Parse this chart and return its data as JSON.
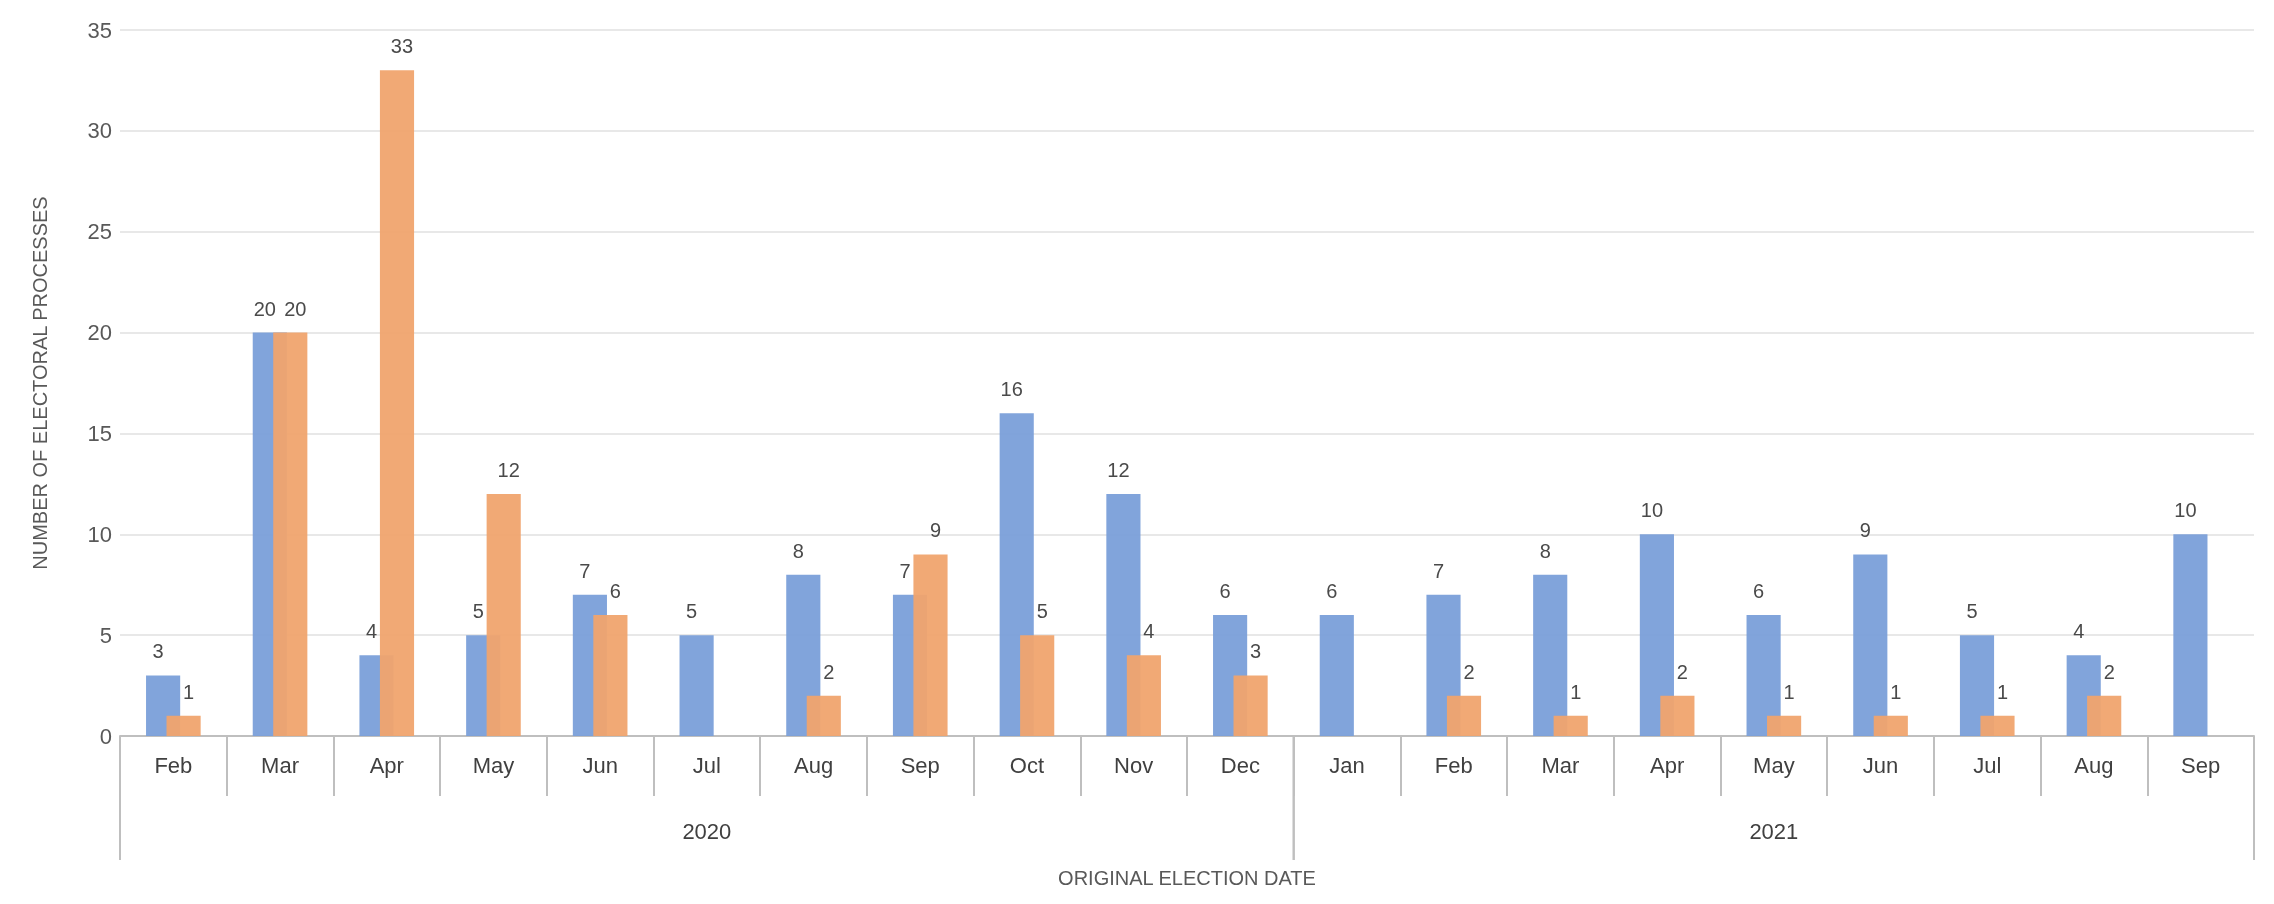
{
  "chart_data": {
    "type": "bar",
    "xlabel": "ORIGINAL ELECTION DATE",
    "ylabel": "NUMBER OF ELECTORAL PROCESSES",
    "categories": [
      "Feb",
      "Mar",
      "Apr",
      "May",
      "Jun",
      "Jul",
      "Aug",
      "Sep",
      "Oct",
      "Nov",
      "Dec",
      "Jan",
      "Feb",
      "Mar",
      "Apr",
      "May",
      "Jun",
      "Jul",
      "Aug",
      "Sep"
    ],
    "annotations": [
      "2020",
      "2021"
    ],
    "series": [
      {
        "color": "#7a9fd9",
        "values": [
          3,
          20,
          4,
          5,
          7,
          5,
          8,
          7,
          16,
          12,
          6,
          6,
          7,
          8,
          10,
          6,
          9,
          5,
          4,
          10
        ]
      },
      {
        "color": "#f0a46e",
        "values": [
          1,
          20,
          33,
          12,
          6,
          null,
          2,
          9,
          5,
          4,
          3,
          null,
          2,
          1,
          2,
          1,
          1,
          1,
          2,
          null
        ]
      }
    ],
    "ylim": [
      0,
      35
    ],
    "yticks": [
      0,
      5,
      10,
      15,
      20,
      25,
      30,
      35
    ],
    "grid": "y",
    "data_labels": true
  }
}
